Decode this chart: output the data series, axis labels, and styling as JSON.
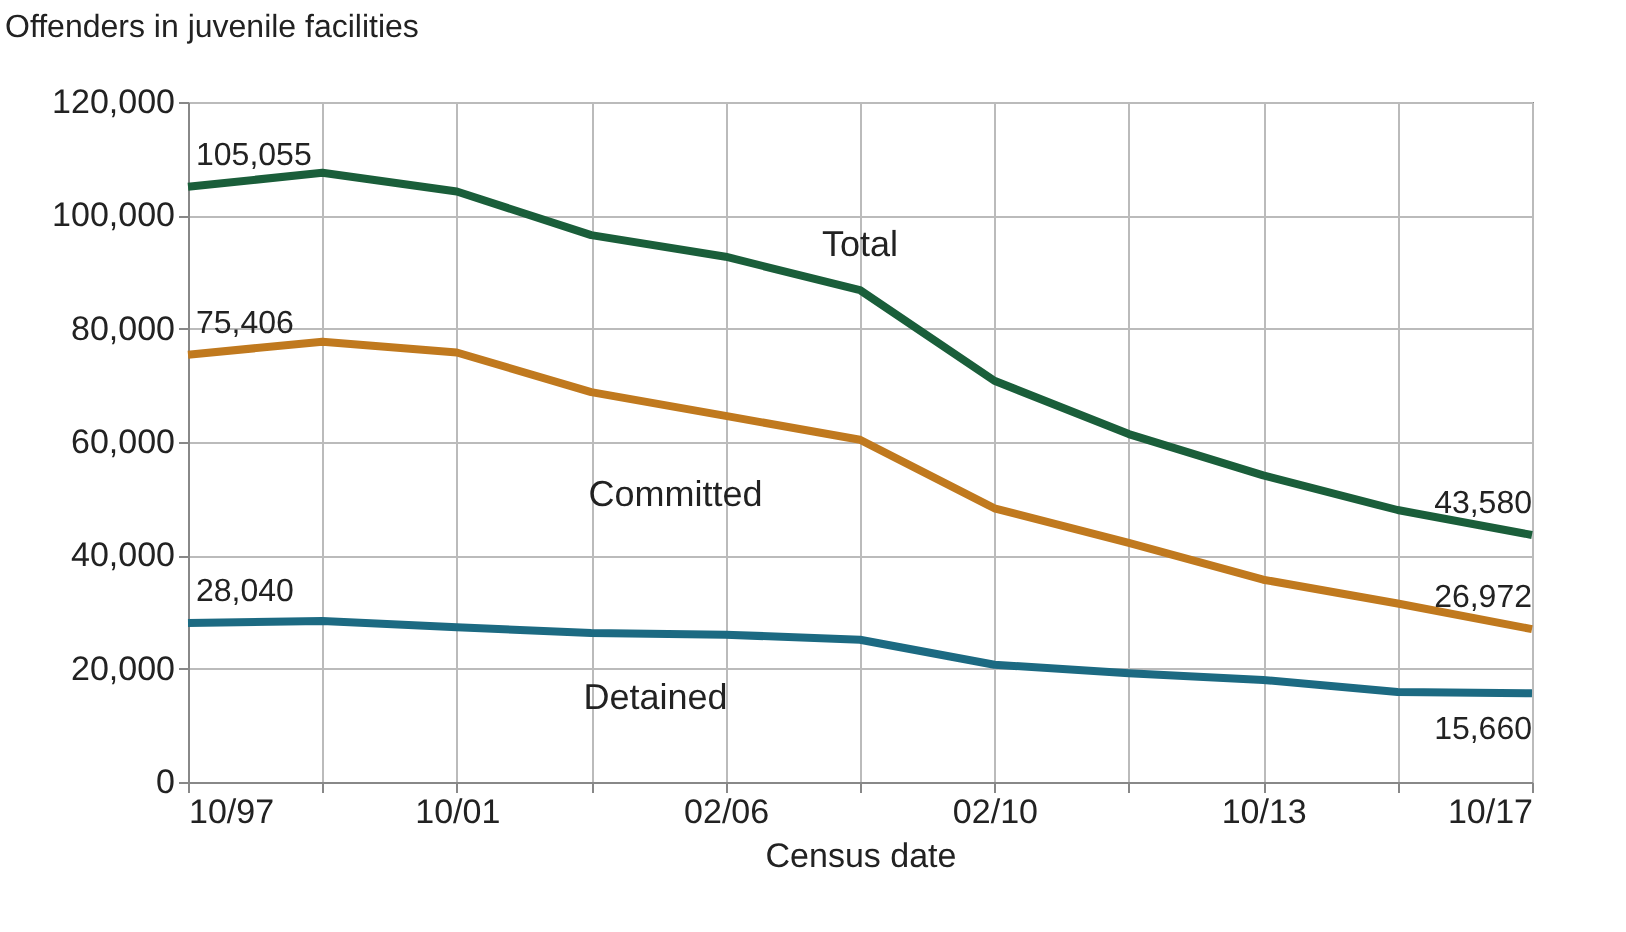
{
  "chart_data": {
    "type": "line",
    "ylabel": "Offenders in juvenile facilities",
    "xlabel": "Census date",
    "categories": [
      "10/97",
      null,
      "10/01",
      null,
      "02/06",
      null,
      "02/10",
      null,
      "10/13",
      null,
      "10/17"
    ],
    "series": [
      {
        "name": "Total",
        "color": "#1a5e3a",
        "values": [
          105055,
          107500,
          104200,
          96500,
          92700,
          86800,
          70800,
          61400,
          54100,
          48000,
          43580
        ],
        "value_labels": [
          "105,055",
          null,
          null,
          null,
          null,
          null,
          null,
          null,
          null,
          null,
          "43,580"
        ]
      },
      {
        "name": "Committed",
        "color": "#c0791e",
        "values": [
          75406,
          77700,
          75800,
          68800,
          64600,
          60400,
          48300,
          42200,
          35700,
          31500,
          26972
        ],
        "value_labels": [
          "75,406",
          null,
          null,
          null,
          null,
          null,
          null,
          null,
          null,
          null,
          "26,972"
        ]
      },
      {
        "name": "Detained",
        "color": "#1c6a82",
        "values": [
          28040,
          28400,
          27300,
          26300,
          26000,
          25100,
          20700,
          19200,
          18000,
          15900,
          15660
        ],
        "value_labels": [
          "28,040",
          null,
          null,
          null,
          null,
          null,
          null,
          null,
          null,
          null,
          "15,660"
        ]
      }
    ],
    "ylim": [
      0,
      120000
    ],
    "yticks": [
      0,
      {
        "value": 20000,
        "label": "20,000"
      },
      {
        "value": 40000,
        "label": "40,000"
      },
      {
        "value": 60000,
        "label": "60,000"
      },
      {
        "value": 80000,
        "label": "80,000"
      },
      {
        "value": 100000,
        "label": "100,000"
      },
      {
        "value": 120000,
        "label": "120,000"
      }
    ],
    "grid": true,
    "marker": "none",
    "line_style": "solid"
  }
}
